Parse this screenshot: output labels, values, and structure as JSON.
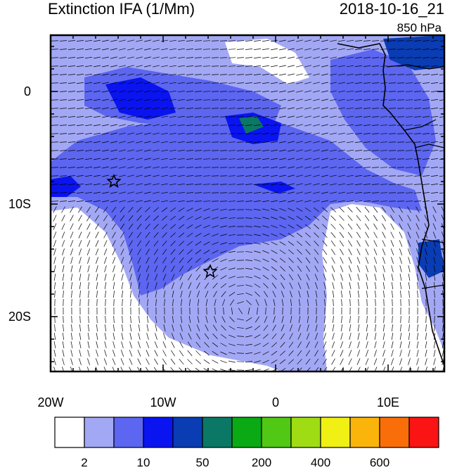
{
  "title": "Extinction IFA (1/Mm)",
  "datetime": "2018-10-16_21",
  "level": "850 hPa",
  "axes": {
    "x_ticks": [
      "20W",
      "10W",
      "0",
      "10E"
    ],
    "y_ticks": [
      "0",
      "10S",
      "20S"
    ]
  },
  "colorbar": {
    "colors": [
      "#ffffff",
      "#a3a8f5",
      "#5c66f0",
      "#0a14f0",
      "#0a3cb4",
      "#0a7864",
      "#0aaa14",
      "#50c814",
      "#a0dc14",
      "#f0f014",
      "#fab40a",
      "#fa6e0a",
      "#fa1414"
    ],
    "labels": [
      "2",
      "10",
      "50",
      "200",
      "400",
      "600"
    ]
  },
  "markers": {
    "symbol": "star"
  }
}
